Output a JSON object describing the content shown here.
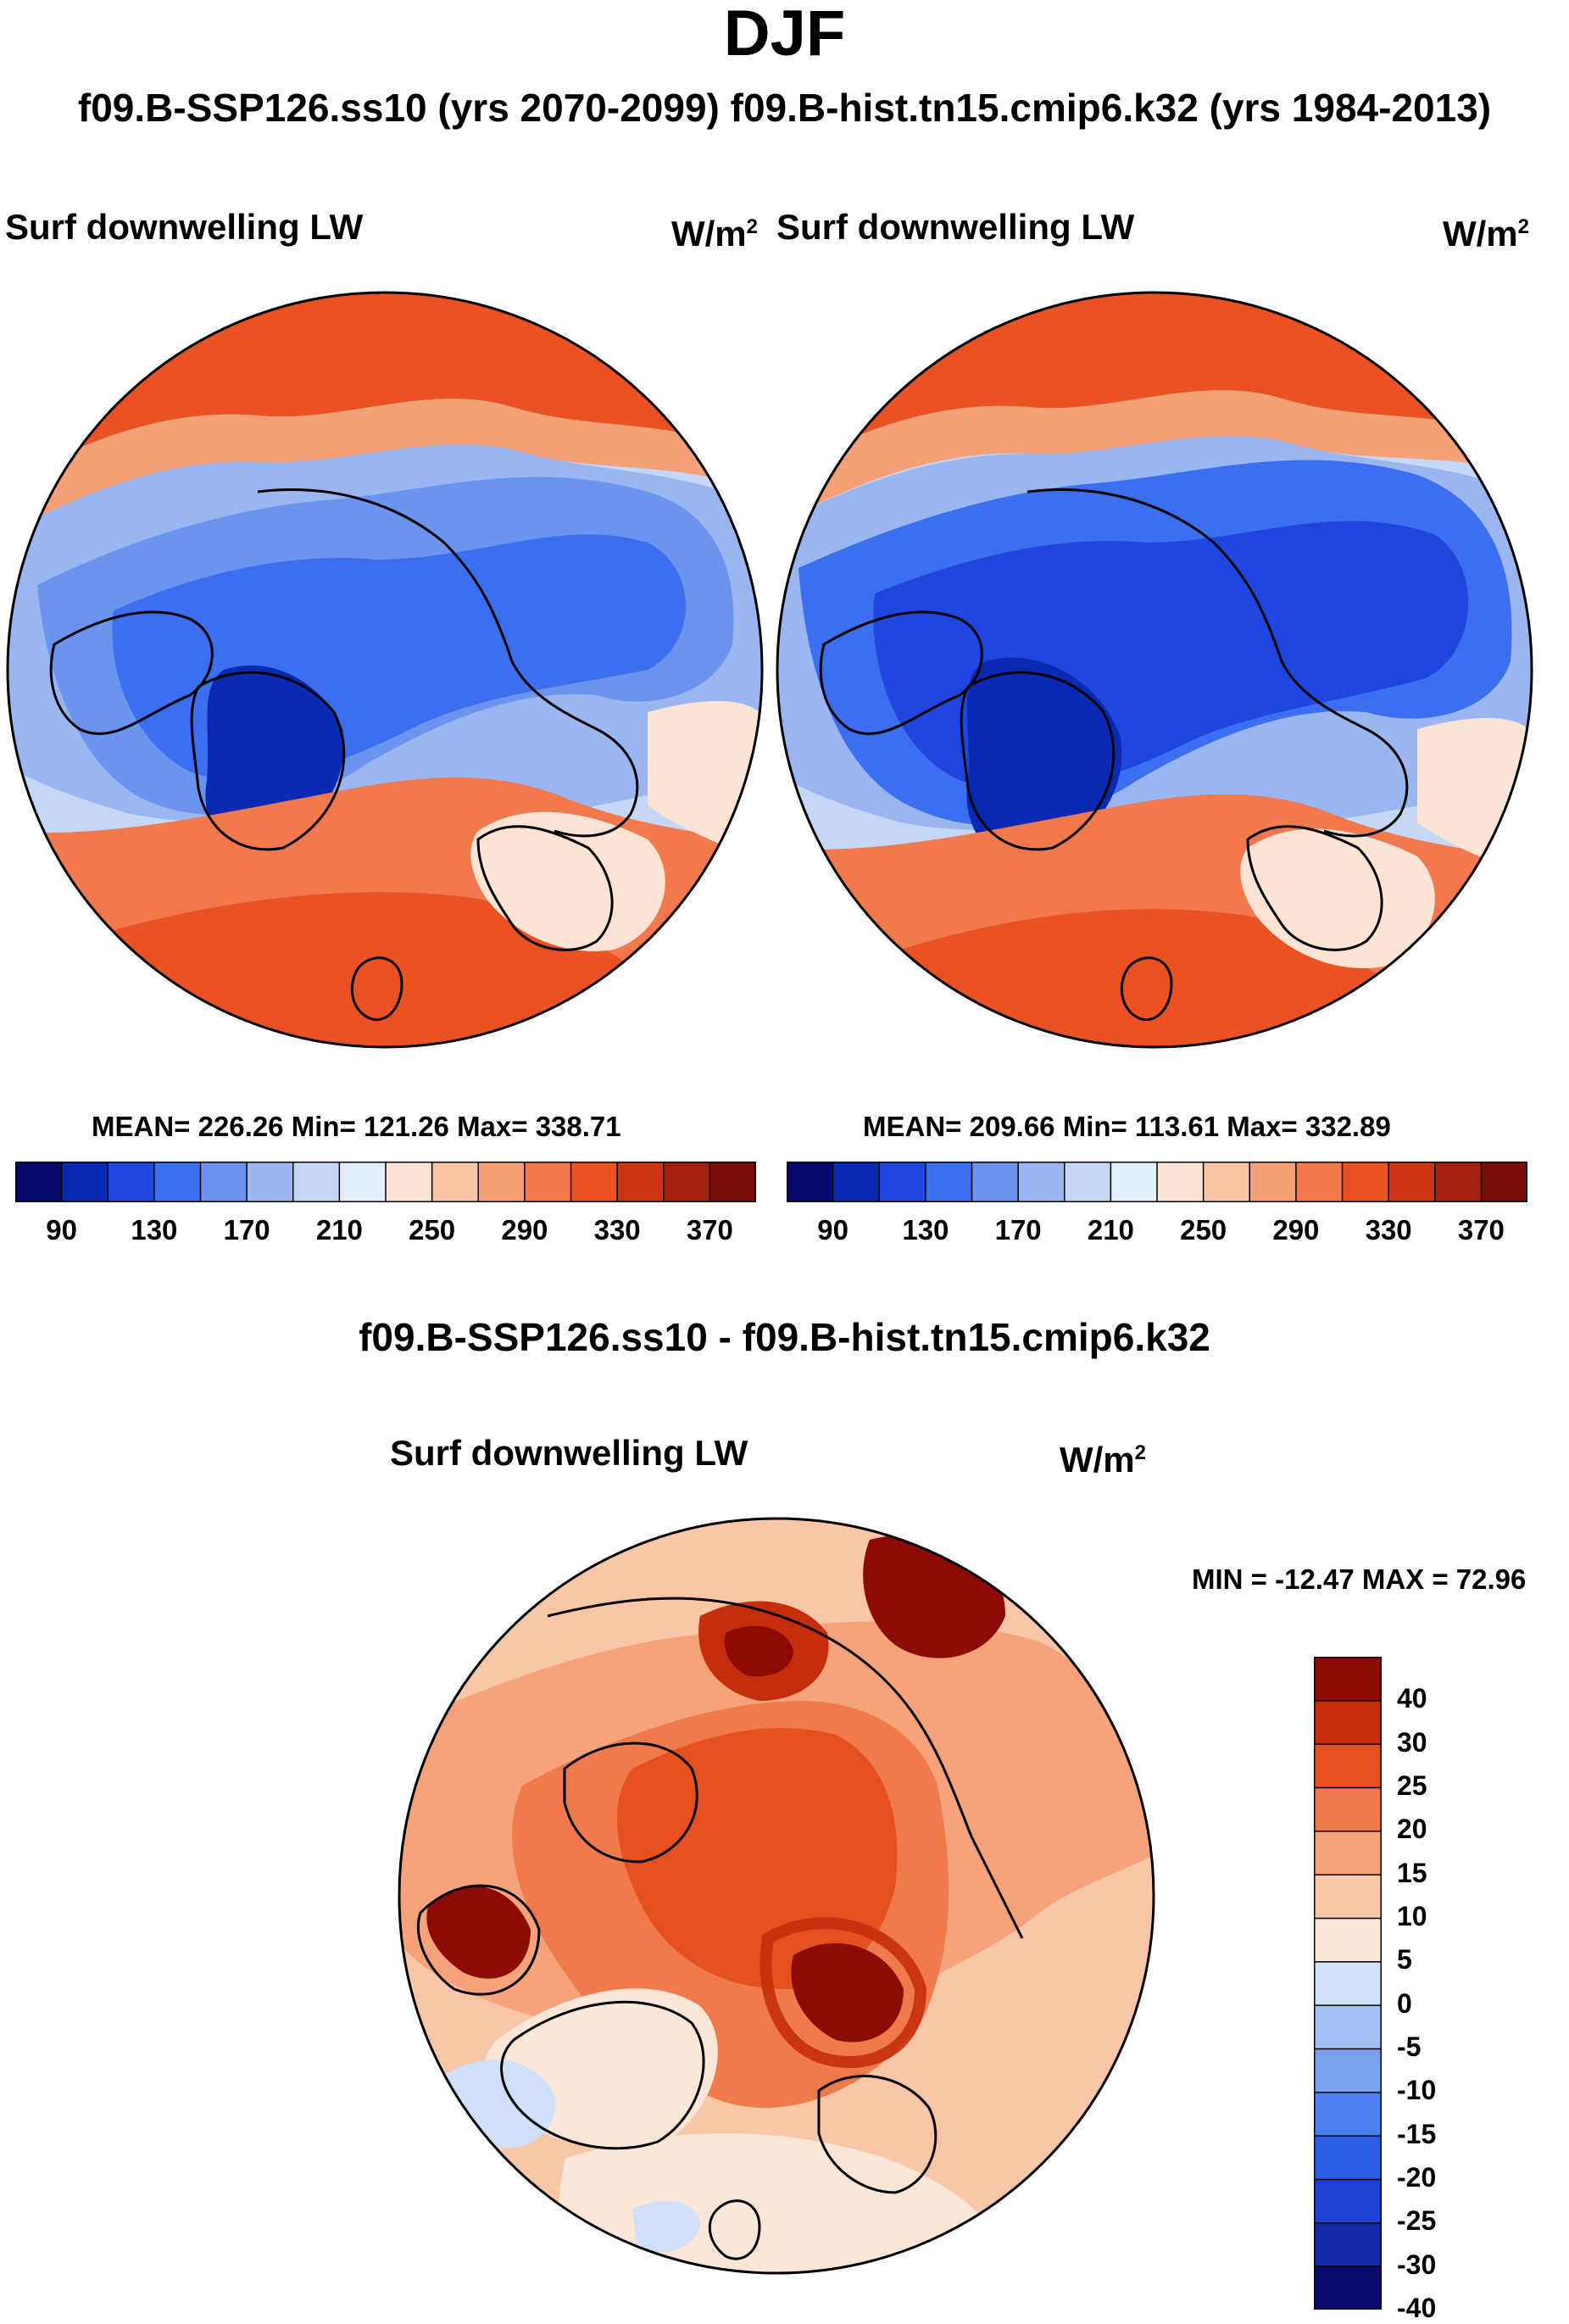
{
  "title": "DJF",
  "subtitle": "f09.B-SSP126.ss10 (yrs 2070-2099)  f09.B-hist.tn15.cmip6.k32 (yrs 1984-2013)",
  "panel_left": {
    "variable": "Surf downwelling LW",
    "units_base": "W/m",
    "units_exp": "2",
    "stats": "MEAN= 226.26  Min= 121.26  Max= 338.71"
  },
  "panel_right": {
    "variable": "Surf downwelling LW",
    "units_base": "W/m",
    "units_exp": "2",
    "stats": "MEAN= 209.66  Min= 113.61  Max= 332.89"
  },
  "panel_diff": {
    "heading": "f09.B-SSP126.ss10 - f09.B-hist.tn15.cmip6.k32",
    "variable": "Surf downwelling LW",
    "units_base": "W/m",
    "units_exp": "2",
    "minmax": "MIN = -12.47 MAX =  72.96"
  },
  "colorbar_abs": {
    "colors": [
      "#08086b",
      "#0a2ab3",
      "#1f47e0",
      "#3c6ef0",
      "#6a94ee",
      "#9ab6f0",
      "#c5d7f6",
      "#e4eefa",
      "#fbe4d3",
      "#f9c3a6",
      "#f6a078",
      "#f2794d",
      "#ea5223",
      "#cc3414",
      "#a6200f",
      "#7a0d0a"
    ],
    "tick_labels": [
      "90",
      "130",
      "170",
      "210",
      "250",
      "290",
      "330",
      "370"
    ]
  },
  "colorbar_diff": {
    "colors": [
      "#0a0a6e",
      "#1229a8",
      "#1f42d4",
      "#2e5ee8",
      "#4d7fee",
      "#7aa0f0",
      "#a4c0f4",
      "#cfe0f8",
      "#fbe6d8",
      "#f9c6a8",
      "#f6a27b",
      "#f07a4c",
      "#e4501e",
      "#c42e0c",
      "#8e0a06"
    ],
    "tick_labels": [
      "40",
      "30",
      "25",
      "20",
      "15",
      "10",
      "5",
      "0",
      "-5",
      "-10",
      "-15",
      "-20",
      "-25",
      "-30",
      "-40"
    ]
  },
  "map_colors": {
    "deep_blue": "#0a2ab3",
    "blue": "#3c6ef0",
    "mid_blue": "#6a94ee",
    "light_blue": "#9ab6f0",
    "pale_blue": "#c5d7f6",
    "paler_blue": "#e4eefa",
    "cream": "#fbe4d3",
    "peach": "#f9c3a6",
    "salmon": "#f6a078",
    "orange": "#f2794d",
    "red_orange": "#ea5223",
    "dark_red": "#a6200f",
    "diff_dark": "#8e0a06",
    "diff_red": "#c42e0c"
  }
}
